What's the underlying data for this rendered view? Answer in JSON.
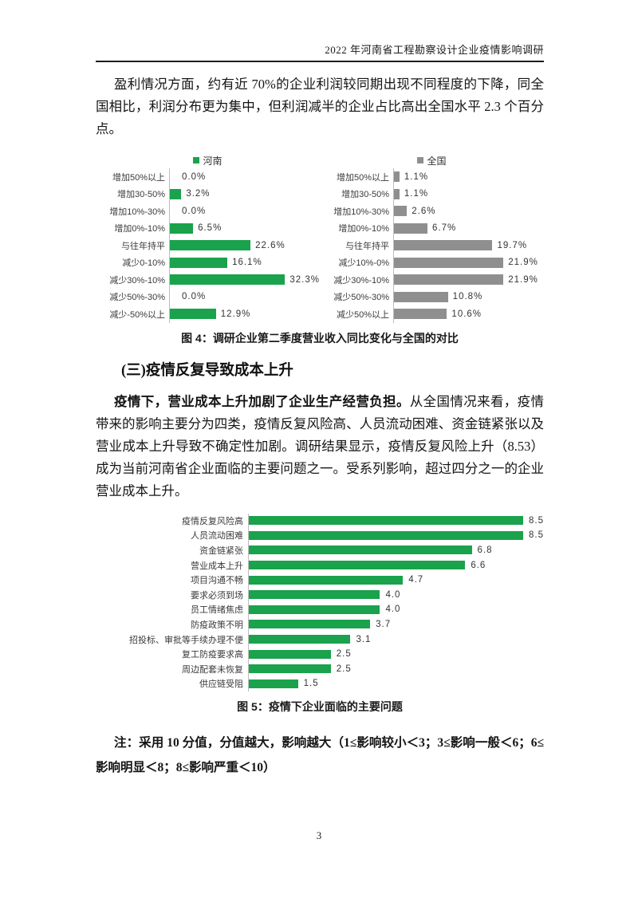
{
  "header": {
    "title": "2022 年河南省工程勘察设计企业疫情影响调研"
  },
  "paragraph1": "盈利情况方面，约有近 70%的企业利润较同期出现不同程度的下降，同全国相比，利润分布更为集中，但利润减半的企业占比高出全国水平 2.3 个百分点。",
  "figure4_caption": "图 4：调研企业第二季度营业收入同比变化与全国的对比",
  "section_heading": "(三)疫情反复导致成本上升",
  "paragraph2_bold": "疫情下，营业成本上升加剧了企业生产经营负担。",
  "paragraph2_rest": "从全国情况来看，疫情带来的影响主要分为四类，疫情反复风险高、人员流动困难、资金链紧张以及营业成本上升导致不确定性加剧。调研结果显示，疫情反复风险上升（8.53）成为当前河南省企业面临的主要问题之一。受系列影响，超过四分之一的企业营业成本上升。",
  "figure5_caption": "图 5：疫情下企业面临的主要问题",
  "note": "注：采用 10 分值，分值越大，影响越大（1≤影响较小＜3；3≤影响一般＜6；6≤影响明显＜8；8≤影响严重＜10）",
  "page_number": "3",
  "colors": {
    "henan_green": "#1aa24c",
    "national_gray": "#8f8f8f"
  },
  "chart_data": [
    {
      "type": "bar",
      "orientation": "horizontal",
      "legend": "河南",
      "legend_position": "top",
      "color": "#1aa24c",
      "categories": [
        "增加50%以上",
        "增加30-50%",
        "增加10%-30%",
        "增加0%-10%",
        "与往年持平",
        "减少0-10%",
        "减少30%-10%",
        "减少50%-30%",
        "减少-50%以上"
      ],
      "values": [
        0.0,
        3.2,
        0.0,
        6.5,
        22.6,
        16.1,
        32.3,
        0.0,
        12.9
      ],
      "labels": [
        "0.0%",
        "3.2%",
        "0.0%",
        "6.5%",
        "22.6%",
        "16.1%",
        "32.3%",
        "0.0%",
        "12.9%"
      ],
      "xlim": [
        0,
        42
      ],
      "grid": false
    },
    {
      "type": "bar",
      "orientation": "horizontal",
      "legend": "全国",
      "legend_position": "top",
      "color": "#8f8f8f",
      "categories": [
        "增加50%以上",
        "增加30-50%",
        "增加10%-30%",
        "增加0%-10%",
        "与往年持平",
        "减少10%-0%",
        "减少30%-10%",
        "减少50%-30%",
        "减少50%以上"
      ],
      "values": [
        1.1,
        1.1,
        2.6,
        6.7,
        19.7,
        21.9,
        21.9,
        10.8,
        10.6
      ],
      "labels": [
        "1.1%",
        "1.1%",
        "2.6%",
        "6.7%",
        "19.7%",
        "21.9%",
        "21.9%",
        "10.8%",
        "10.6%"
      ],
      "xlim": [
        0,
        30
      ],
      "grid": false
    },
    {
      "type": "bar",
      "orientation": "horizontal",
      "legend": null,
      "color": "#1aa24c",
      "categories": [
        "疫情反复风险高",
        "人员流动困难",
        "资金链紧张",
        "营业成本上升",
        "项目沟通不畅",
        "要求必须到场",
        "员工情绪焦虑",
        "防疫政策不明",
        "招投标、审批等手续办理不便",
        "复工防疫要求高",
        "周边配套未恢复",
        "供应链受阻"
      ],
      "values": [
        8.5,
        8.5,
        6.8,
        6.6,
        4.7,
        4.0,
        4.0,
        3.7,
        3.1,
        2.5,
        2.5,
        1.5
      ],
      "labels": [
        "8.5",
        "8.5",
        "6.8",
        "6.6",
        "4.7",
        "4.0",
        "4.0",
        "3.7",
        "3.1",
        "2.5",
        "2.5",
        "1.5"
      ],
      "xlim": [
        0,
        9
      ],
      "grid": false
    }
  ]
}
